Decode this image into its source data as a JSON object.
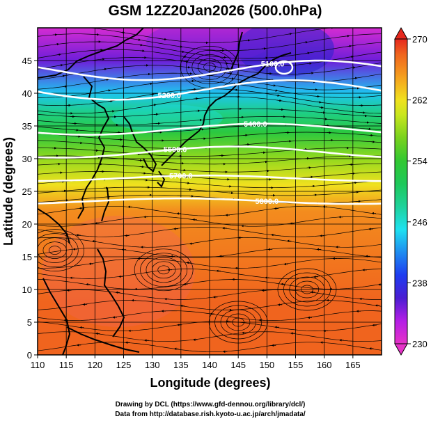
{
  "title": "GSM 12Z20Jan2026 (500.0hPa)",
  "xlabel": "Longitude (degrees)",
  "ylabel": "Latitude  (degrees)",
  "credit_line1": "Drawing by DCL (https://www.gfd-dennou.org/library/dcl/)",
  "credit_line2": "Data from http://database.rish.kyoto-u.ac.jp/arch/jmadata/",
  "colorbar": {
    "ticks": [
      230,
      238,
      246,
      254,
      262,
      270
    ],
    "stops": [
      {
        "value": 230,
        "color": "#e633c8"
      },
      {
        "value": 233,
        "color": "#b41ee6"
      },
      {
        "value": 236,
        "color": "#4b1ed2"
      },
      {
        "value": 239,
        "color": "#1e3cf0"
      },
      {
        "value": 242,
        "color": "#1e8cf0"
      },
      {
        "value": 245,
        "color": "#1ee1f0"
      },
      {
        "value": 248,
        "color": "#1ed29b"
      },
      {
        "value": 251,
        "color": "#1ec85a"
      },
      {
        "value": 254,
        "color": "#32c832"
      },
      {
        "value": 257,
        "color": "#78d21e"
      },
      {
        "value": 260,
        "color": "#c8e61e"
      },
      {
        "value": 262,
        "color": "#f0e11e"
      },
      {
        "value": 265,
        "color": "#f5a01e"
      },
      {
        "value": 268,
        "color": "#f0641e"
      },
      {
        "value": 270,
        "color": "#e6281e"
      }
    ]
  },
  "chart_data": {
    "type": "heatmap",
    "title": "GSM 12Z20Jan2026 (500.0hPa)",
    "variable": "temperature (K) shaded, geopotential height contours, wind streamlines",
    "xlabel": "Longitude (degrees)",
    "ylabel": "Latitude  (degrees)",
    "xlim": [
      110,
      170
    ],
    "ylim": [
      0,
      50
    ],
    "xticks": [
      110,
      115,
      120,
      125,
      130,
      135,
      140,
      145,
      150,
      155,
      160,
      165
    ],
    "yticks": [
      0,
      5,
      10,
      15,
      20,
      25,
      30,
      35,
      40,
      45
    ],
    "contours": [
      {
        "label": "5100.0",
        "lat": 43.5,
        "label_lon": 151
      },
      {
        "label": "5200.0",
        "lat": 40.5,
        "label_lon": 133
      },
      {
        "label": "5400.0",
        "lat": 34.5,
        "label_lon": 148
      },
      {
        "label": "5500.0",
        "lat": 31.0,
        "label_lon": 134
      },
      {
        "label": "5700.0",
        "lat": 27.0,
        "label_lon": 135
      },
      {
        "label": "5800.0",
        "lat": 23.5,
        "label_lon": 150
      }
    ],
    "temperature_profile": [
      {
        "lat": 50,
        "value": 231
      },
      {
        "lat": 45,
        "value": 235
      },
      {
        "lat": 40,
        "value": 244
      },
      {
        "lat": 37,
        "value": 249
      },
      {
        "lat": 34,
        "value": 253
      },
      {
        "lat": 30,
        "value": 258
      },
      {
        "lat": 26,
        "value": 262
      },
      {
        "lat": 22,
        "value": 266
      },
      {
        "lat": 15,
        "value": 267
      },
      {
        "lat": 8,
        "value": 268
      },
      {
        "lat": 0,
        "value": 268
      }
    ]
  }
}
